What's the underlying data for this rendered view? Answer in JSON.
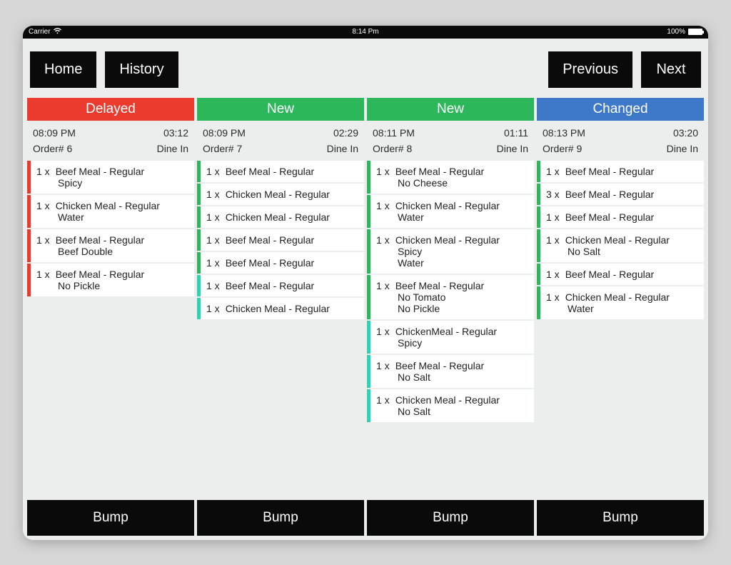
{
  "statusbar": {
    "carrier": "Carrier",
    "time": "8:14 Pm",
    "battery_pct": "100%"
  },
  "toolbar": {
    "home_label": "Home",
    "history_label": "History",
    "previous_label": "Previous",
    "next_label": "Next"
  },
  "colors": {
    "delayed": "#eb3b2e",
    "new": "#2cb85a",
    "changed": "#3e78c8",
    "item_red": "#eb3b2e",
    "item_green": "#2cb85a",
    "item_teal": "#2bd4b0"
  },
  "bump_label": "Bump",
  "columns": [
    {
      "status": "Delayed",
      "header_color_key": "delayed",
      "time": "08:09 PM",
      "elapsed": "03:12",
      "order": "Order# 6",
      "service": "Dine In",
      "items": [
        {
          "qty": "1 x",
          "name": "Beef Meal - Regular",
          "mods": [
            "Spicy"
          ],
          "stripe": "item_red"
        },
        {
          "qty": "1 x",
          "name": "Chicken Meal - Regular",
          "mods": [
            "Water"
          ],
          "stripe": "item_red"
        },
        {
          "qty": "1 x",
          "name": "Beef Meal - Regular",
          "mods": [
            "Beef Double"
          ],
          "stripe": "item_red"
        },
        {
          "qty": "1 x",
          "name": "Beef Meal - Regular",
          "mods": [
            "No Pickle"
          ],
          "stripe": "item_red"
        }
      ]
    },
    {
      "status": "New",
      "header_color_key": "new",
      "time": "08:09 PM",
      "elapsed": "02:29",
      "order": "Order# 7",
      "service": "Dine In",
      "items": [
        {
          "qty": "1 x",
          "name": "Beef Meal - Regular",
          "mods": [],
          "stripe": "item_green"
        },
        {
          "qty": "1 x",
          "name": "Chicken Meal - Regular",
          "mods": [],
          "stripe": "item_green"
        },
        {
          "qty": "1 x",
          "name": "Chicken Meal - Regular",
          "mods": [],
          "stripe": "item_green"
        },
        {
          "qty": "1 x",
          "name": "Beef Meal - Regular",
          "mods": [],
          "stripe": "item_green"
        },
        {
          "qty": "1 x",
          "name": "Beef Meal - Regular",
          "mods": [],
          "stripe": "item_green"
        },
        {
          "qty": "1 x",
          "name": "Beef Meal - Regular",
          "mods": [],
          "stripe": "item_teal"
        },
        {
          "qty": "1 x",
          "name": "Chicken Meal - Regular",
          "mods": [],
          "stripe": "item_teal"
        }
      ]
    },
    {
      "status": "New",
      "header_color_key": "new",
      "time": "08:11 PM",
      "elapsed": "01:11",
      "order": "Order# 8",
      "service": "Dine In",
      "items": [
        {
          "qty": "1 x",
          "name": "Beef Meal - Regular",
          "mods": [
            "No Cheese"
          ],
          "stripe": "item_green"
        },
        {
          "qty": "1 x",
          "name": "Chicken Meal - Regular",
          "mods": [
            "Water"
          ],
          "stripe": "item_green"
        },
        {
          "qty": "1 x",
          "name": "Chicken Meal - Regular",
          "mods": [
            "Spicy",
            "Water"
          ],
          "stripe": "item_green"
        },
        {
          "qty": "1 x",
          "name": "Beef Meal - Regular",
          "mods": [
            "No Tomato",
            "No Pickle"
          ],
          "stripe": "item_green"
        },
        {
          "qty": "1 x",
          "name": "ChickenMeal - Regular",
          "mods": [
            "Spicy"
          ],
          "stripe": "item_teal"
        },
        {
          "qty": "1 x",
          "name": "Beef Meal - Regular",
          "mods": [
            "No Salt"
          ],
          "stripe": "item_teal"
        },
        {
          "qty": "1 x",
          "name": "Chicken Meal - Regular",
          "mods": [
            "No Salt"
          ],
          "stripe": "item_teal"
        }
      ]
    },
    {
      "status": "Changed",
      "header_color_key": "changed",
      "time": "08:13 PM",
      "elapsed": "03:20",
      "order": "Order# 9",
      "service": "Dine In",
      "items": [
        {
          "qty": "1 x",
          "name": "Beef Meal - Regular",
          "mods": [],
          "stripe": "item_green"
        },
        {
          "qty": "3 x",
          "name": "Beef Meal - Regular",
          "mods": [],
          "stripe": "item_green"
        },
        {
          "qty": "1 x",
          "name": "Beef Meal - Regular",
          "mods": [],
          "stripe": "item_green"
        },
        {
          "qty": "1 x",
          "name": "Chicken Meal - Regular",
          "mods": [
            "No Salt"
          ],
          "stripe": "item_green"
        },
        {
          "qty": "1 x",
          "name": "Beef Meal - Regular",
          "mods": [],
          "stripe": "item_green"
        },
        {
          "qty": "1 x",
          "name": "Chicken Meal - Regular",
          "mods": [
            "Water"
          ],
          "stripe": "item_green"
        }
      ]
    }
  ]
}
